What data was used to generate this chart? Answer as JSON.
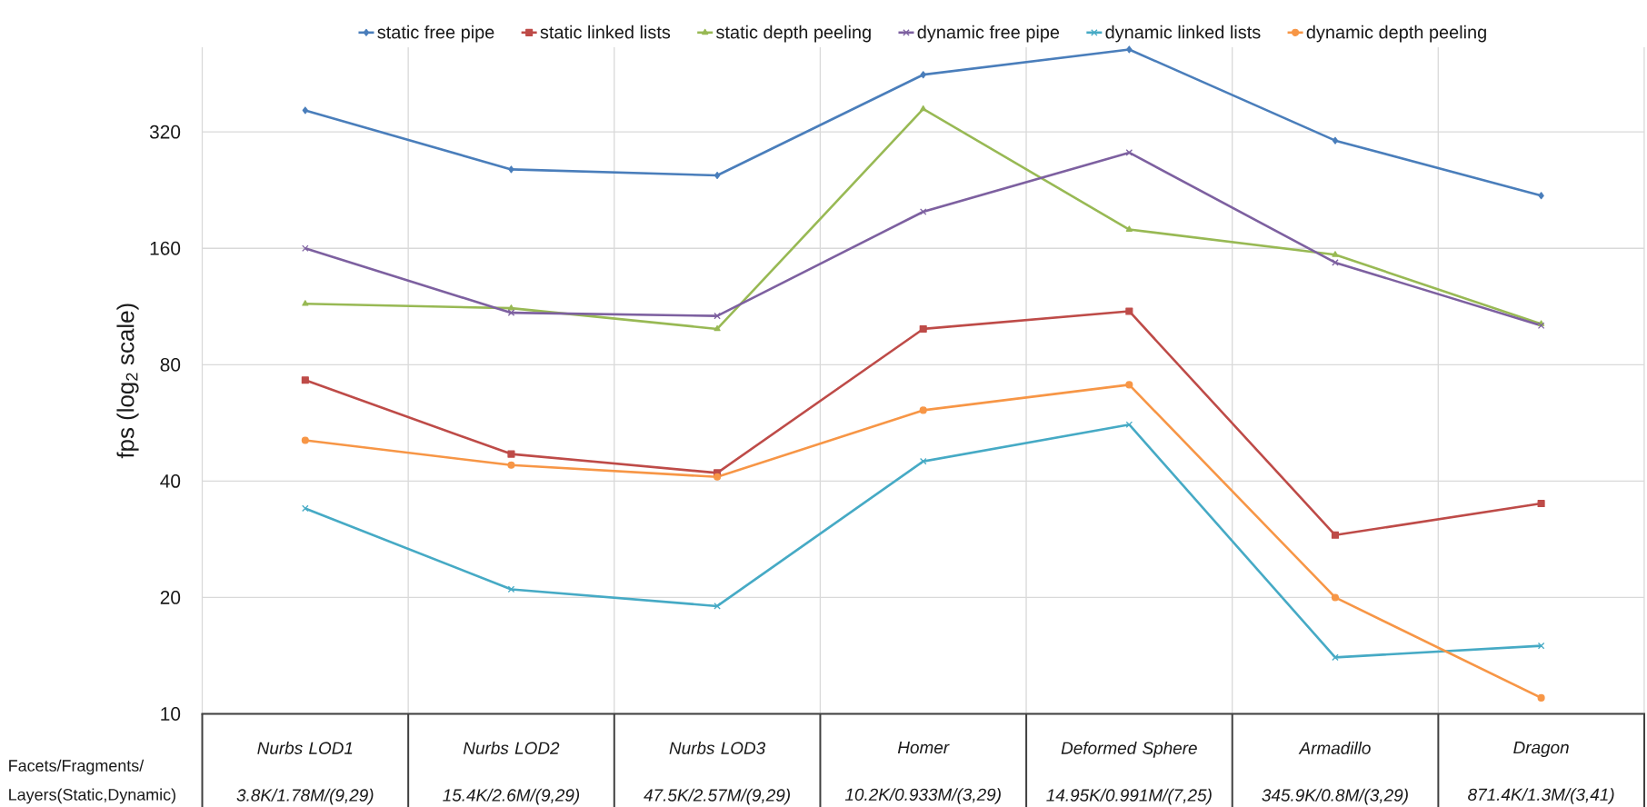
{
  "chart_data": {
    "type": "line",
    "ylabel": "fps (log$_{2}$ scale)",
    "xlabel": "Facets/Fragments/ Layers(Static,Dynamic)",
    "categories": [
      "Nurbs LOD1 3.8K/1.78M/(9,29)",
      "Nurbs LOD2 15.4K/2.6M/(9,29)",
      "Nurbs LOD3 47.5K/2.57M/(9,29)",
      "Homer 10.2K/0.933M/(3,29)",
      "Deformed Sphere 14.95K/0.991M/(7,25)",
      "Armadillo 345.9K/0.8M/(3,29)",
      "Dragon 871.4K/1.3M/(3,41)"
    ],
    "series": [
      {
        "name": "static free pipe",
        "color": "#4a7ebb",
        "marker": "diamond",
        "values": [
          364,
          256,
          247,
          450,
          523,
          304,
          219
        ]
      },
      {
        "name": "static linked lists",
        "color": "#be4b48",
        "marker": "square",
        "values": [
          73,
          47,
          42,
          99,
          110,
          29,
          35
        ]
      },
      {
        "name": "static depth peeling",
        "color": "#98b954",
        "marker": "triangle",
        "values": [
          115,
          112,
          99,
          367,
          179,
          154,
          102
        ]
      },
      {
        "name": "dynamic free pipe",
        "color": "#7d60a0",
        "marker": "cross",
        "values": [
          160,
          109,
          107,
          199,
          283,
          147,
          101
        ]
      },
      {
        "name": "dynamic linked lists",
        "color": "#46aac5",
        "marker": "cross",
        "values": [
          34,
          21,
          19,
          45,
          56,
          14,
          15
        ]
      },
      {
        "name": "dynamic depth peeling",
        "color": "#f79646",
        "marker": "circle",
        "values": [
          51,
          44,
          41,
          61,
          71,
          20,
          11
        ]
      }
    ],
    "log": "y",
    "ylim": [
      10,
      530
    ],
    "yticks": [
      10,
      20,
      40,
      80,
      160,
      320
    ],
    "grid": true,
    "legend": "top"
  }
}
